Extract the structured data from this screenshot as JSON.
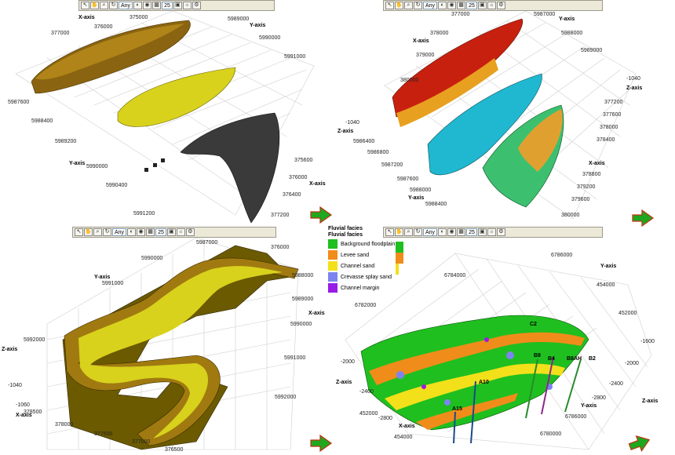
{
  "toolbar": {
    "filter_label": "Any",
    "size_value": "25"
  },
  "colors": {
    "background_floodplain": "#1fbf1f",
    "levee_sand": "#f08c1a",
    "channel_sand": "#f2e01a",
    "crevasse_splay_sand": "#7d84f0",
    "channel_margin": "#9a1ae6",
    "brown_body": "#8a6410",
    "yellow_body": "#d8d21c",
    "gray_body": "#3a3a3a"
  },
  "panel_tl": {
    "x_axis_title": "X-axis",
    "y_axis_title": "Y-axis",
    "x_ticks": [
      "375000",
      "376000",
      "377000"
    ],
    "y_ticks_top": [
      "5989000",
      "5990000",
      "5991000"
    ],
    "y_ticks_left": [
      "5987600",
      "5988400",
      "5989200",
      "5990000",
      "5990400",
      "5991200"
    ],
    "x_ticks_right": [
      "375600",
      "376000",
      "376400",
      "377200"
    ]
  },
  "panel_tr": {
    "x_axis_title": "X-axis",
    "y_axis_title": "Y-axis",
    "z_axis_title": "Z-axis",
    "x_ticks": [
      "377000",
      "378000",
      "379000",
      "380000"
    ],
    "y_ticks_top": [
      "5987000",
      "5988000",
      "5989000"
    ],
    "z_ticks": [
      "-1040"
    ],
    "y_ticks_left": [
      "5986400",
      "5986800",
      "5987200",
      "5987600",
      "5988000",
      "5988400"
    ],
    "z_ticks_left": [
      "-1040"
    ],
    "x_ticks_right": [
      "377200",
      "377600",
      "378000",
      "378400",
      "378800",
      "379200",
      "379600",
      "380000"
    ]
  },
  "panel_bl": {
    "x_axis_title": "X-axis",
    "y_axis_title": "Y-axis",
    "z_axis_title": "Z-axis",
    "x_ticks_top": [
      "5987000",
      "376000"
    ],
    "y_ticks_left": [
      "5990000",
      "5991000",
      "5992000"
    ],
    "z_ticks": [
      "-1040",
      "-1060"
    ],
    "x_ticks_bottom": [
      "378500",
      "378000",
      "377500",
      "377000",
      "376500"
    ],
    "y_ticks_right": [
      "5988000",
      "5989000",
      "5990000",
      "5991000",
      "5992000"
    ]
  },
  "panel_br": {
    "x_axis_title": "X-axis",
    "y_axis_title": "Y-axis",
    "z_axis_title": "Z-axis",
    "y_ticks_top": [
      "6786000",
      "6784000",
      "6782000"
    ],
    "x_ticks_right": [
      "454000",
      "452000"
    ],
    "z_ticks_left": [
      "-2000",
      "-2400",
      "-2800"
    ],
    "z_ticks_right": [
      "-1600",
      "-2000",
      "-2400",
      "-2800"
    ],
    "x_ticks_bottom": [
      "452000",
      "454000"
    ],
    "y_ticks_bottom": [
      "6780000",
      "6786000"
    ],
    "well_labels": [
      "A10",
      "A15",
      "B8",
      "B4",
      "B8AH",
      "B2",
      "C2"
    ]
  },
  "legend": {
    "title1": "Fluvial facies",
    "title2": "Fluvial facies",
    "items": [
      {
        "label": "Background floodplain",
        "color": "#1fbf1f"
      },
      {
        "label": "Levee sand",
        "color": "#f08c1a"
      },
      {
        "label": "Channel sand",
        "color": "#f2e01a"
      },
      {
        "label": "Crevasse splay sand",
        "color": "#7d84f0"
      },
      {
        "label": "Channel margin",
        "color": "#9a1ae6"
      }
    ]
  }
}
